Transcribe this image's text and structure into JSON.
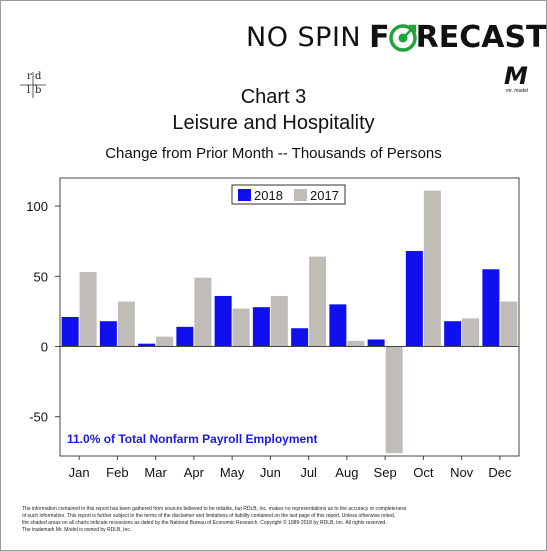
{
  "brand": {
    "name_part1": "NO SPIN",
    "name_part2_f": "F",
    "name_part2_rest": "RECAST",
    "rdlb_letters": [
      "r",
      "d",
      "l",
      "b"
    ],
    "model_logo_letter": "M",
    "model_logo_tagline": "mr. model"
  },
  "colors": {
    "series_2018": "#1010ee",
    "series_2017": "#c0bdb8",
    "annotation": "#1a1ae6",
    "logo_green": "#1fa33a"
  },
  "chart_data": {
    "type": "bar",
    "title": "Chart 3",
    "subtitle": "Leisure and Hospitality",
    "ylabel_text": "Change from Prior Month -- Thousands of Persons",
    "categories": [
      "Jan",
      "Feb",
      "Mar",
      "Apr",
      "May",
      "Jun",
      "Jul",
      "Aug",
      "Sep",
      "Oct",
      "Nov",
      "Dec"
    ],
    "series": [
      {
        "name": "2018",
        "color": "#1010ee",
        "values": [
          21,
          18,
          2,
          14,
          36,
          28,
          13,
          30,
          5,
          68,
          18,
          55
        ]
      },
      {
        "name": "2017",
        "color": "#c0bdb8",
        "values": [
          53,
          32,
          7,
          49,
          27,
          36,
          64,
          4,
          -76,
          111,
          20,
          32
        ]
      }
    ],
    "yticks": [
      -50,
      0,
      50,
      100
    ],
    "ytick_labels": [
      "-50",
      "0",
      "50",
      "100"
    ],
    "ylim": [
      -78,
      120
    ],
    "grid": false,
    "legend_position": "top-center",
    "annotation": "11.0% of Total Nonfarm Payroll Employment"
  },
  "footer": {
    "lines": [
      "The information contained in this report has been gathered from sources believed to be reliable, but RDLB, Inc. makes no representations as to the accuracy or completeness",
      "of such information. This report is further subject to the terms of the disclaimer and limitations of liability contained on the last page of this report. Unless otherwise noted,",
      "the shaded areas on all charts indicate recessions as dated by the National Bureau of Economic Research. Copyright © 1989-2018 by RDLB, Inc. All rights reserved.",
      "The trademark Mr. Model is owned by RDLB, Inc."
    ]
  }
}
